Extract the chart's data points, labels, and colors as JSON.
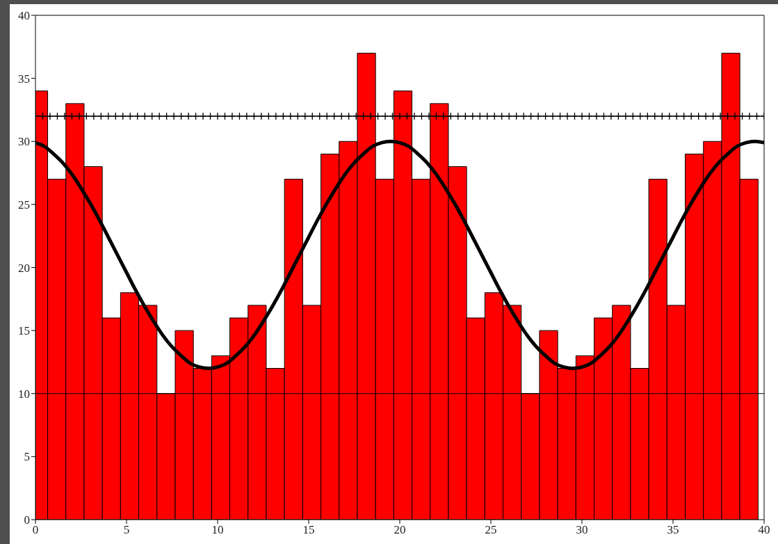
{
  "chart_data": {
    "type": "histogram",
    "xlim": [
      0,
      40
    ],
    "ylim": [
      0,
      40
    ],
    "xticks": [
      0,
      5,
      10,
      15,
      20,
      25,
      30,
      35,
      40
    ],
    "yticks": [
      0,
      5,
      10,
      15,
      20,
      25,
      30,
      35,
      40
    ],
    "grid": false,
    "ref_lines": [
      {
        "axis": "y",
        "value": 10,
        "color": "#000000"
      }
    ],
    "series": [
      {
        "type": "histogram",
        "color": "#ff0000",
        "bins": [
          0,
          0.67,
          1.67,
          2.67,
          3.67,
          4.67,
          5.67,
          6.67,
          7.67,
          8.67,
          9.67,
          10.67,
          11.67,
          12.67,
          13.67,
          14.67,
          15.67,
          16.67,
          17.67,
          18.67,
          19.67,
          20.67,
          21.67,
          22.67,
          23.67,
          24.67,
          25.67,
          26.67,
          27.67,
          28.67,
          29.67,
          30.67,
          31.67,
          32.67,
          33.67,
          34.67,
          35.67,
          36.67,
          37.67,
          38.67,
          39.67
        ],
        "values": [
          34,
          27,
          33,
          28,
          16,
          18,
          17,
          10,
          15,
          12,
          13,
          16,
          17,
          12,
          27,
          17,
          29,
          30,
          37,
          27,
          34,
          27,
          33,
          28,
          16,
          18,
          17,
          10,
          15,
          12,
          13,
          16,
          17,
          12,
          27,
          17,
          29,
          30,
          37,
          27
        ]
      },
      {
        "type": "line",
        "color": "#000000",
        "marker": "none",
        "x": [
          0,
          0.5,
          1,
          1.5,
          2,
          2.5,
          3,
          3.5,
          4,
          4.5,
          5,
          5.5,
          6,
          6.5,
          7,
          7.5,
          8,
          8.5,
          9,
          9.5,
          10,
          10.5,
          11,
          11.5,
          12,
          12.5,
          13,
          13.5,
          14,
          14.5,
          15,
          15.5,
          16,
          16.5,
          17,
          17.5,
          18,
          18.5,
          19,
          19.5,
          20,
          20.5,
          21,
          21.5,
          22,
          22.5,
          23,
          23.5,
          24,
          24.5,
          25,
          25.5,
          26,
          26.5,
          27,
          27.5,
          28,
          28.5,
          29,
          29.5,
          30,
          30.5,
          31,
          31.5,
          32,
          32.5,
          33,
          33.5,
          34,
          34.5,
          35,
          35.5,
          36,
          36.5,
          37,
          37.5,
          38,
          38.5,
          39,
          39.5,
          40
        ],
        "values": [
          29.9,
          29.6,
          29.0,
          28.3,
          27.4,
          26.3,
          25.1,
          23.8,
          22.4,
          21,
          19.6,
          18.2,
          16.9,
          15.7,
          14.6,
          13.7,
          13.0,
          12.4,
          12.1,
          12,
          12.1,
          12.4,
          13.0,
          13.7,
          14.6,
          15.7,
          16.9,
          18.2,
          19.6,
          21,
          22.4,
          23.8,
          25.1,
          26.3,
          27.4,
          28.3,
          29.0,
          29.6,
          29.9,
          30,
          29.9,
          29.6,
          29.0,
          28.3,
          27.4,
          26.3,
          25.1,
          23.8,
          22.4,
          21,
          19.6,
          18.2,
          16.9,
          15.7,
          14.6,
          13.7,
          13.0,
          12.4,
          12.1,
          12,
          12.1,
          12.4,
          13.0,
          13.7,
          14.6,
          15.7,
          16.9,
          18.2,
          19.6,
          21,
          22.4,
          23.8,
          25.1,
          26.3,
          27.4,
          28.3,
          29.0,
          29.6,
          29.9,
          30,
          29.9
        ]
      },
      {
        "type": "line",
        "color": "#000000",
        "marker": "cross",
        "x": [
          0,
          0.4,
          0.8,
          1.2,
          1.6,
          2,
          2.4,
          2.8,
          3.2,
          3.6,
          4,
          4.4,
          4.8,
          5.2,
          5.6,
          6,
          6.4,
          6.8,
          7.2,
          7.6,
          8,
          8.4,
          8.8,
          9.2,
          9.6,
          10,
          10.4,
          10.8,
          11.2,
          11.6,
          12,
          12.4,
          12.8,
          13.2,
          13.6,
          14,
          14.4,
          14.8,
          15.2,
          15.6,
          16,
          16.4,
          16.8,
          17.2,
          17.6,
          18,
          18.4,
          18.8,
          19.2,
          19.6,
          20,
          20.4,
          20.8,
          21.2,
          21.6,
          22,
          22.4,
          22.8,
          23.2,
          23.6,
          24,
          24.4,
          24.8,
          25.2,
          25.6,
          26,
          26.4,
          26.8,
          27.2,
          27.6,
          28,
          28.4,
          28.8,
          29.2,
          29.6,
          30,
          30.4,
          30.8,
          31.2,
          31.6,
          32,
          32.4,
          32.8,
          33.2,
          33.6,
          34,
          34.4,
          34.8,
          35.2,
          35.6,
          36,
          36.4,
          36.8,
          37.2,
          37.6,
          38,
          38.4,
          38.8,
          39.2,
          39.6,
          40
        ],
        "values": [
          32,
          32,
          32,
          32,
          32,
          32,
          32,
          32,
          32,
          32,
          32,
          32,
          32,
          32,
          32,
          32,
          32,
          32,
          32,
          32,
          32,
          32,
          32,
          32,
          32,
          32,
          32,
          32,
          32,
          32,
          32,
          32,
          32,
          32,
          32,
          32,
          32,
          32,
          32,
          32,
          32,
          32,
          32,
          32,
          32,
          32,
          32,
          32,
          32,
          32,
          32,
          32,
          32,
          32,
          32,
          32,
          32,
          32,
          32,
          32,
          32,
          32,
          32,
          32,
          32,
          32,
          32,
          32,
          32,
          32,
          32,
          32,
          32,
          32,
          32,
          32,
          32,
          32,
          32,
          32,
          32,
          32,
          32,
          32,
          32,
          32,
          32,
          32,
          32,
          32,
          32,
          32,
          32,
          32,
          32,
          32,
          32,
          32,
          32,
          32,
          32
        ]
      }
    ]
  }
}
